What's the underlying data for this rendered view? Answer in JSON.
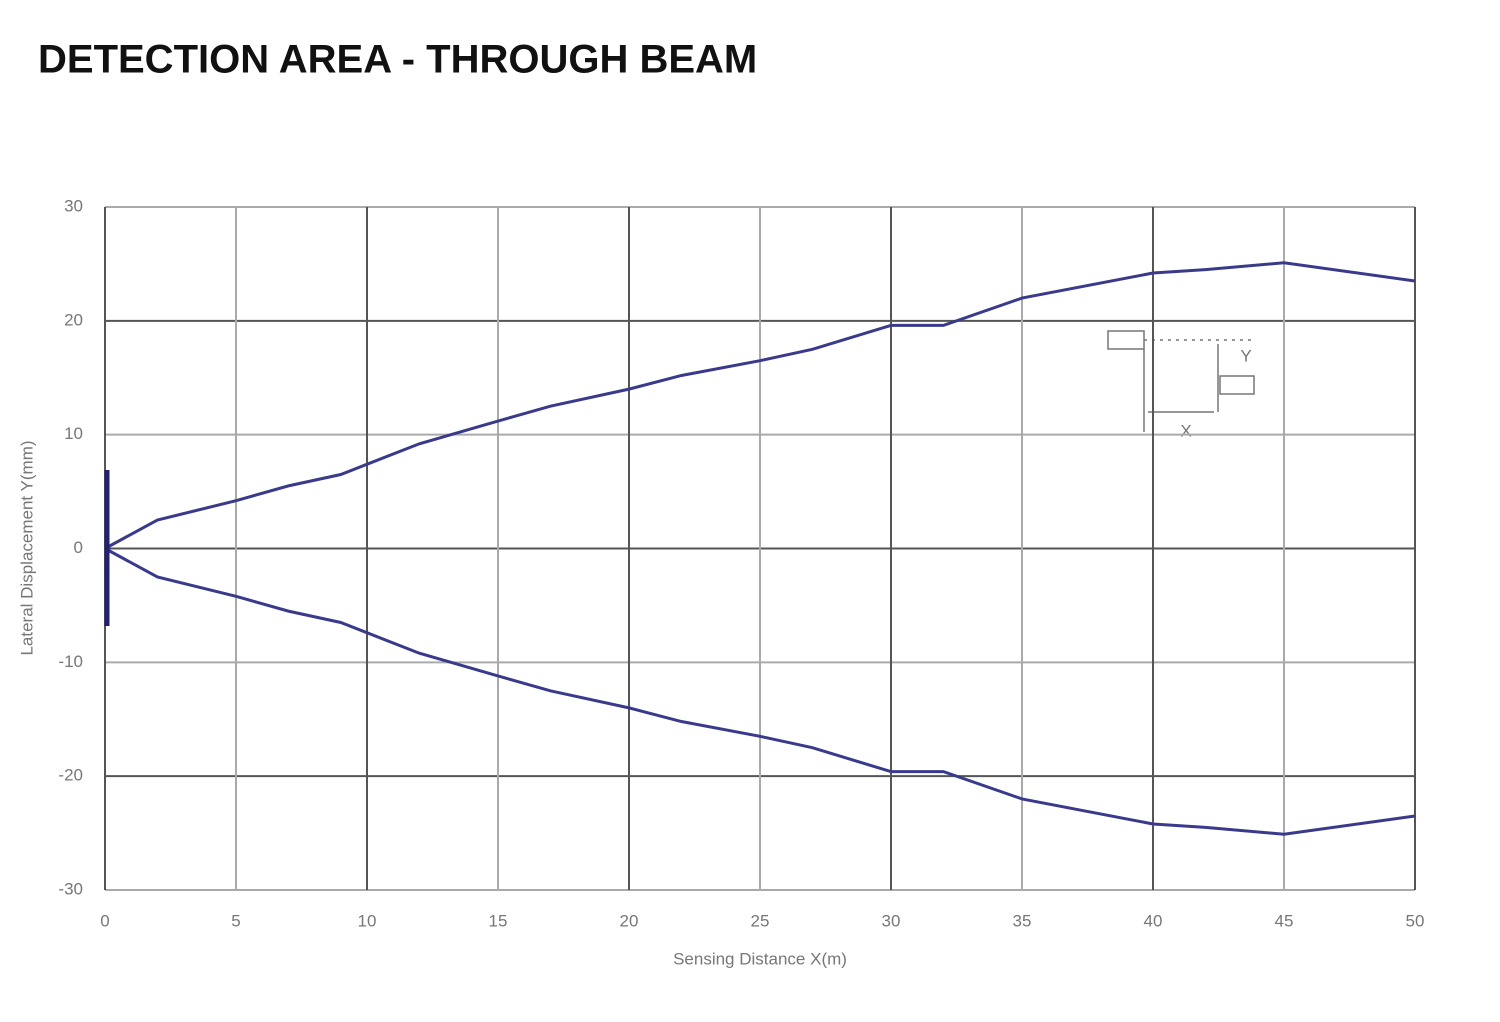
{
  "chart_data": {
    "type": "line",
    "title": "DETECTION AREA - THROUGH BEAM",
    "x_label": "Sensing Distance X(m)",
    "y_label": "Lateral Displacement Y(mm)",
    "inset_labels": {
      "x": "X",
      "y": "Y"
    },
    "x": [
      0,
      2,
      5,
      7,
      9,
      12,
      15,
      17,
      20,
      22,
      25,
      27,
      30,
      32,
      35,
      40,
      42,
      45,
      50
    ],
    "series": [
      {
        "color": "#3a3a8c",
        "values": [
          0,
          2.5,
          4.2,
          5.5,
          6.5,
          9.2,
          11.2,
          12.5,
          14,
          15.2,
          16.5,
          17.5,
          19.6,
          19.6,
          22,
          24.2,
          24.5,
          25.1,
          23.5
        ]
      },
      {
        "color": "#3a3a8c",
        "values": [
          0,
          -2.5,
          -4.2,
          -5.5,
          -6.5,
          -9.2,
          -11.2,
          -12.5,
          -14,
          -15.2,
          -16.5,
          -17.5,
          -19.6,
          -19.6,
          -22,
          -24.2,
          -24.5,
          -25.1,
          -23.5
        ]
      }
    ],
    "xlim": [
      0,
      50
    ],
    "xticks": [
      0,
      5,
      10,
      15,
      20,
      25,
      30,
      35,
      40,
      45,
      50
    ],
    "ylim": [
      -30,
      30
    ],
    "yticks": [
      -30,
      -20,
      -10,
      0,
      10,
      20,
      30
    ],
    "grid": true
  }
}
